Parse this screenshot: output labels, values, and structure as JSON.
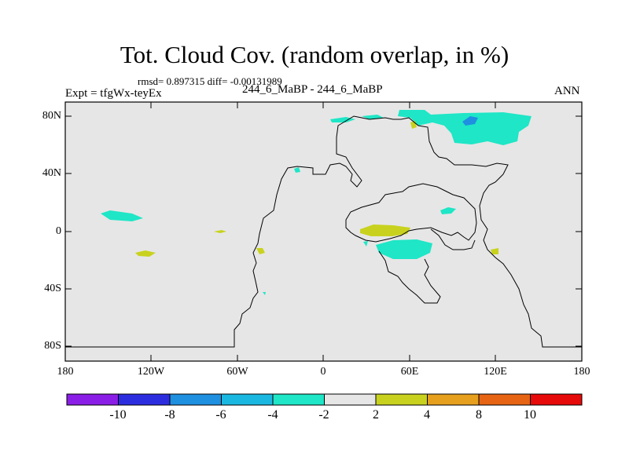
{
  "title": "Tot. Cloud Cov. (random overlap, in %)",
  "stats": "rmsd= 0.897315 diff= -0.00131989",
  "experiment": "Expt = tfgWx-teyEx",
  "case": "244_6_MaBP - 244_6_MaBP",
  "season": "ANN",
  "lat_labels": [
    "80N",
    "40N",
    "0",
    "40S",
    "80S"
  ],
  "lon_labels": [
    "180",
    "120W",
    "60W",
    "0",
    "60E",
    "120E",
    "180"
  ],
  "colorbar": {
    "labels": [
      "-10",
      "-8",
      "-6",
      "-4",
      "-2",
      "2",
      "4",
      "8",
      "10"
    ],
    "colors": [
      "#8a1ee6",
      "#2d2de0",
      "#1f8fe0",
      "#1ab8e0",
      "#1ee6c6",
      "#e6e6e6",
      "#c8d21e",
      "#e6a01e",
      "#e66414",
      "#e60a0a"
    ]
  },
  "map_colors": {
    "background": "#e6e6e6",
    "cyan": "#1ee6c6",
    "blue": "#1f8fe0",
    "yellow": "#c8d21e",
    "coast": "#000000"
  }
}
